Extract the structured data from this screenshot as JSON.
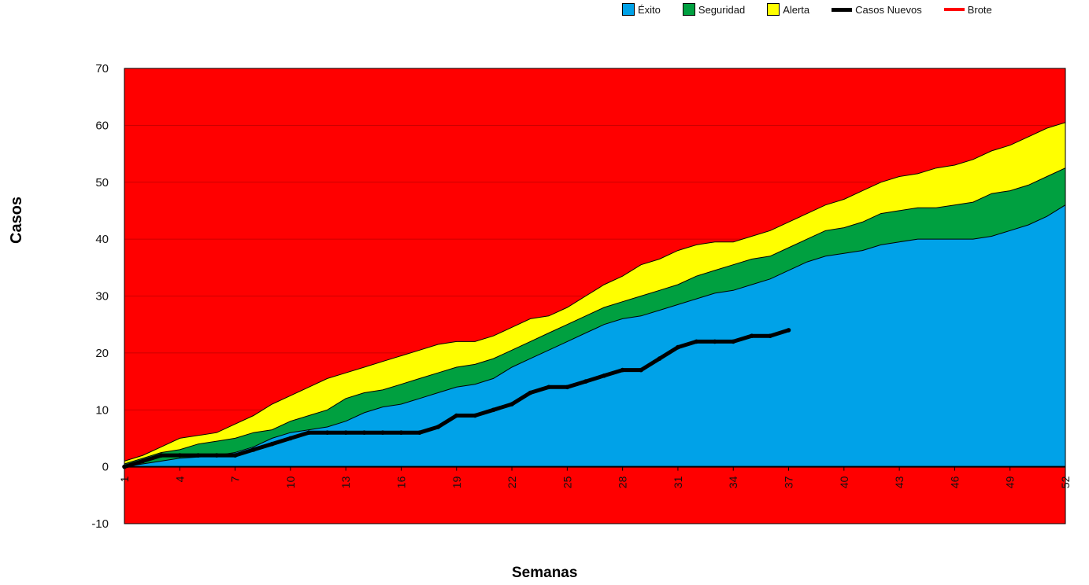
{
  "chart_data": {
    "type": "area",
    "title": "",
    "xlabel": "Semanas",
    "ylabel": "Casos",
    "ylim": [
      -10,
      70
    ],
    "yticks": [
      -10,
      0,
      10,
      20,
      30,
      40,
      50,
      60,
      70
    ],
    "xticks": [
      1,
      4,
      7,
      10,
      13,
      16,
      19,
      22,
      25,
      28,
      31,
      34,
      37,
      40,
      43,
      46,
      49,
      52
    ],
    "background_zone": {
      "name": "Brote",
      "color": "#ff0000"
    },
    "weeks": [
      1,
      2,
      3,
      4,
      5,
      6,
      7,
      8,
      9,
      10,
      11,
      12,
      13,
      14,
      15,
      16,
      17,
      18,
      19,
      20,
      21,
      22,
      23,
      24,
      25,
      26,
      27,
      28,
      29,
      30,
      31,
      32,
      33,
      34,
      35,
      36,
      37,
      38,
      39,
      40,
      41,
      42,
      43,
      44,
      45,
      46,
      47,
      48,
      49,
      50,
      51,
      52
    ],
    "series": [
      {
        "name": "Éxito",
        "kind": "area",
        "color": "#00a2e8",
        "values": [
          0,
          0.5,
          1,
          1.5,
          1.7,
          2,
          2.5,
          3.5,
          5,
          6,
          6.5,
          7,
          8,
          9.5,
          10.5,
          11,
          12,
          13,
          14,
          14.5,
          15.5,
          17.5,
          19,
          20.5,
          22,
          23.5,
          25,
          26,
          26.5,
          27.5,
          28.5,
          29.5,
          30.5,
          31,
          32,
          33,
          34.5,
          36,
          37,
          37.5,
          38,
          39,
          39.5,
          40,
          40,
          40,
          40,
          40.5,
          41.5,
          42.5,
          44,
          46
        ]
      },
      {
        "name": "Seguridad",
        "kind": "area",
        "color": "#00a040",
        "values": [
          0.5,
          1.5,
          2.5,
          3,
          4,
          4.5,
          5,
          6,
          6.5,
          8,
          9,
          10,
          12,
          13,
          13.5,
          14.5,
          15.5,
          16.5,
          17.5,
          18,
          19,
          20.5,
          22,
          23.5,
          25,
          26.5,
          28,
          29,
          30,
          31,
          32,
          33.5,
          34.5,
          35.5,
          36.5,
          37,
          38.5,
          40,
          41.5,
          42,
          43,
          44.5,
          45,
          45.5,
          45.5,
          46,
          46.5,
          48,
          48.5,
          49.5,
          51,
          52.5
        ]
      },
      {
        "name": "Alerta",
        "kind": "area",
        "color": "#ffff00",
        "values": [
          1,
          2,
          3.5,
          5,
          5.5,
          6,
          7.5,
          9,
          11,
          12.5,
          14,
          15.5,
          16.5,
          17.5,
          18.5,
          19.5,
          20.5,
          21.5,
          22,
          22,
          23,
          24.5,
          26,
          26.5,
          28,
          30,
          32,
          33.5,
          35.5,
          36.5,
          38,
          39,
          39.5,
          39.5,
          40.5,
          41.5,
          43,
          44.5,
          46,
          47,
          48.5,
          50,
          51,
          51.5,
          52.5,
          53,
          54,
          55.5,
          56.5,
          58,
          59.5,
          60.5
        ]
      },
      {
        "name": "Casos Nuevos",
        "kind": "line",
        "color": "#000000",
        "values": [
          0,
          1,
          2,
          2,
          2,
          2,
          2,
          3,
          4,
          5,
          6,
          6,
          6,
          6,
          6,
          6,
          6,
          7,
          9,
          9,
          10,
          11,
          13,
          14,
          14,
          15,
          16,
          17,
          17,
          19,
          21,
          22,
          22,
          22,
          23,
          23,
          24
        ]
      },
      {
        "name": "Brote",
        "kind": "legend-only",
        "color": "#ff0000"
      }
    ]
  }
}
